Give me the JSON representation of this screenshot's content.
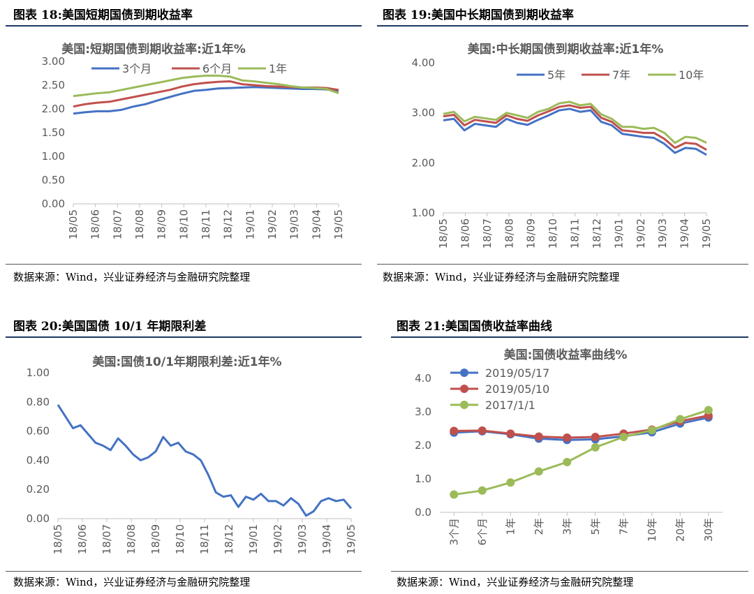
{
  "panels": [
    {
      "figure_title": "图表 18:美国短期国债到期收益率",
      "source": "数据来源：Wind，兴业证券经济与金融研究院整理",
      "chart_data": {
        "type": "line",
        "title": "美国:短期国债到期收益率:近1年%",
        "x_ticks": [
          "18/05",
          "18/06",
          "18/07",
          "18/08",
          "18/09",
          "18/10",
          "18/11",
          "18/12",
          "19/01",
          "19/02",
          "19/03",
          "19/04",
          "19/05"
        ],
        "y_ticks": [
          "0.00",
          "0.50",
          "1.00",
          "1.50",
          "2.00",
          "2.50",
          "3.00"
        ],
        "ylim": [
          0,
          3
        ],
        "legend_position": "top",
        "series": [
          {
            "name": "3个月",
            "color": "#4472c4",
            "values": [
              1.9,
              1.93,
              1.95,
              1.95,
              1.98,
              2.05,
              2.1,
              2.18,
              2.25,
              2.32,
              2.38,
              2.4,
              2.43,
              2.44,
              2.45,
              2.46,
              2.45,
              2.44,
              2.43,
              2.42,
              2.42,
              2.41,
              2.38
            ]
          },
          {
            "name": "6个月",
            "color": "#c0504d",
            "values": [
              2.05,
              2.1,
              2.13,
              2.15,
              2.2,
              2.25,
              2.3,
              2.35,
              2.4,
              2.47,
              2.52,
              2.55,
              2.57,
              2.58,
              2.52,
              2.5,
              2.48,
              2.47,
              2.46,
              2.45,
              2.45,
              2.44,
              2.4
            ]
          },
          {
            "name": "1年",
            "color": "#9bbb59",
            "values": [
              2.27,
              2.3,
              2.33,
              2.35,
              2.4,
              2.45,
              2.5,
              2.55,
              2.6,
              2.65,
              2.68,
              2.7,
              2.7,
              2.68,
              2.6,
              2.58,
              2.55,
              2.52,
              2.48,
              2.45,
              2.44,
              2.42,
              2.33
            ]
          }
        ]
      }
    },
    {
      "figure_title": "图表 19:美国中长期国债到期收益率",
      "source": "数据来源：Wind，兴业证券经济与金融研究院整理",
      "chart_data": {
        "type": "line",
        "title": "美国:中长期国债到期收益率:近1年%",
        "x_ticks": [
          "18/05",
          "18/06",
          "18/07",
          "18/08",
          "18/09",
          "18/10",
          "18/11",
          "18/12",
          "19/01",
          "19/02",
          "19/03",
          "19/04",
          "19/05"
        ],
        "y_ticks": [
          "1.00",
          "2.00",
          "3.00",
          "4.00"
        ],
        "ylim": [
          1,
          4
        ],
        "legend_position": "top",
        "series": [
          {
            "name": "5年",
            "color": "#4472c4",
            "values": [
              2.85,
              2.88,
              2.65,
              2.78,
              2.75,
              2.72,
              2.88,
              2.8,
              2.76,
              2.86,
              2.95,
              3.05,
              3.08,
              3.02,
              3.05,
              2.82,
              2.75,
              2.58,
              2.55,
              2.52,
              2.5,
              2.38,
              2.2,
              2.3,
              2.28,
              2.16
            ]
          },
          {
            "name": "7年",
            "color": "#c0504d",
            "values": [
              2.93,
              2.96,
              2.75,
              2.86,
              2.83,
              2.8,
              2.95,
              2.88,
              2.84,
              2.95,
              3.03,
              3.12,
              3.15,
              3.1,
              3.12,
              2.9,
              2.82,
              2.65,
              2.63,
              2.6,
              2.6,
              2.48,
              2.3,
              2.4,
              2.38,
              2.26
            ]
          },
          {
            "name": "10年",
            "color": "#9bbb59",
            "values": [
              2.98,
              3.02,
              2.83,
              2.92,
              2.89,
              2.86,
              3.0,
              2.95,
              2.9,
              3.02,
              3.08,
              3.19,
              3.22,
              3.15,
              3.18,
              2.97,
              2.88,
              2.72,
              2.72,
              2.68,
              2.7,
              2.6,
              2.4,
              2.52,
              2.5,
              2.4
            ]
          }
        ]
      }
    },
    {
      "figure_title": "图表 20:美国国债 10/1 年期限利差",
      "source": "数据来源：Wind，兴业证券经济与金融研究院整理",
      "chart_data": {
        "type": "line",
        "title": "美国:国债10/1年期限利差:近1年%",
        "x_ticks": [
          "18/05",
          "18/06",
          "18/07",
          "18/08",
          "18/09",
          "18/10",
          "18/11",
          "18/12",
          "19/01",
          "19/02",
          "19/03",
          "19/04",
          "19/05"
        ],
        "y_ticks": [
          "0.00",
          "0.20",
          "0.40",
          "0.60",
          "0.80",
          "1.00"
        ],
        "ylim": [
          0,
          1
        ],
        "series": [
          {
            "name": "",
            "color": "#4472c4",
            "values": [
              0.78,
              0.7,
              0.62,
              0.64,
              0.58,
              0.52,
              0.5,
              0.47,
              0.55,
              0.5,
              0.44,
              0.4,
              0.42,
              0.46,
              0.56,
              0.5,
              0.52,
              0.46,
              0.44,
              0.4,
              0.3,
              0.18,
              0.15,
              0.16,
              0.08,
              0.15,
              0.13,
              0.17,
              0.12,
              0.12,
              0.09,
              0.14,
              0.1,
              0.02,
              0.05,
              0.12,
              0.14,
              0.12,
              0.13,
              0.07
            ]
          }
        ]
      }
    },
    {
      "figure_title": "图表 21:美国国债收益率曲线",
      "source": "数据来源：Wind，兴业证券经济与金融研究院整理",
      "chart_data": {
        "type": "line",
        "title": "美国:国债收益率曲线%",
        "categories": [
          "3个月",
          "6个月",
          "1年",
          "2年",
          "3年",
          "5年",
          "7年",
          "10年",
          "20年",
          "30年"
        ],
        "y_ticks": [
          "0.0",
          "1.0",
          "2.0",
          "3.0",
          "4.0"
        ],
        "ylim": [
          0,
          4
        ],
        "legend_position": "top-left",
        "series": [
          {
            "name": "2019/05/17",
            "color": "#4472c4",
            "values": [
              2.38,
              2.42,
              2.33,
              2.2,
              2.16,
              2.18,
              2.27,
              2.39,
              2.65,
              2.83
            ]
          },
          {
            "name": "2019/05/10",
            "color": "#c0504d",
            "values": [
              2.43,
              2.44,
              2.35,
              2.26,
              2.23,
              2.25,
              2.35,
              2.47,
              2.72,
              2.89
            ]
          },
          {
            "name": "2017/1/1",
            "color": "#9bbb59",
            "values": [
              0.53,
              0.65,
              0.89,
              1.22,
              1.5,
              1.94,
              2.25,
              2.45,
              2.78,
              3.05
            ]
          }
        ]
      }
    }
  ]
}
